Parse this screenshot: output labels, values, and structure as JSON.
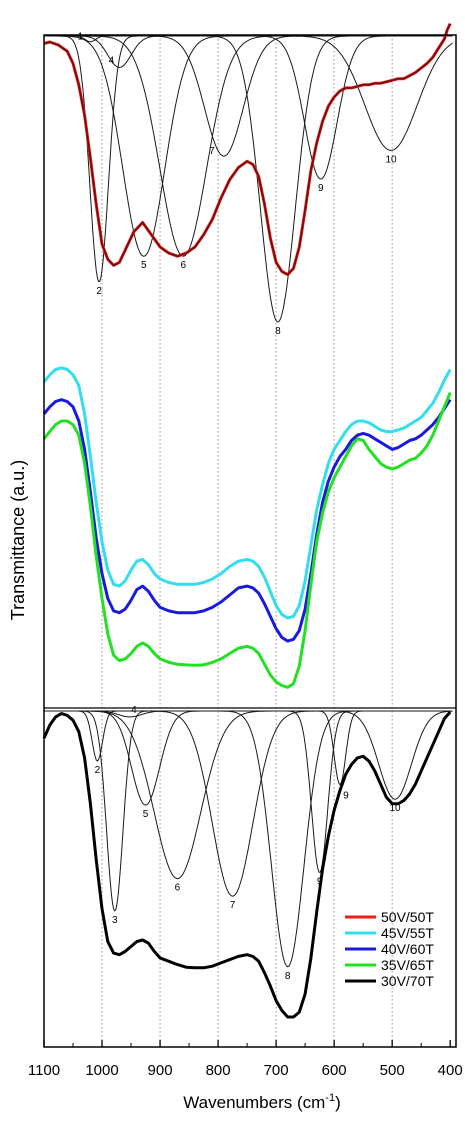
{
  "chart_data": {
    "type": "line",
    "xlabel": "Wavenumbers (cm",
    "xlabel_sup": "-1",
    "xlabel_close": ")",
    "ylabel": "Transmittance (a.u.)",
    "xlim": [
      1100,
      390
    ],
    "x_reversed": true,
    "xticks": [
      1100,
      1000,
      900,
      800,
      700,
      600,
      500,
      400
    ],
    "vgrid": [
      1000,
      900,
      800,
      700,
      600,
      500
    ],
    "legend_position": "bottom-right",
    "legend": [
      {
        "name": "50V/50T",
        "color": "#ee1c1c"
      },
      {
        "name": "45V/55T",
        "color": "#33ddee"
      },
      {
        "name": "40V/60T",
        "color": "#1a1adc"
      },
      {
        "name": "35V/65T",
        "color": "#22e022"
      },
      {
        "name": "30V/70T",
        "color": "#000000"
      }
    ],
    "series": [
      {
        "name": "50V/50T",
        "panel": "top",
        "color": "#ee1c1c",
        "overlay_color": "#6b0f0f",
        "x": [
          1100,
          1090,
          1075,
          1060,
          1050,
          1040,
          1030,
          1020,
          1010,
          1000,
          990,
          980,
          970,
          960,
          945,
          930,
          915,
          900,
          885,
          870,
          855,
          840,
          825,
          810,
          795,
          780,
          765,
          750,
          740,
          730,
          720,
          710,
          700,
          690,
          680,
          670,
          660,
          650,
          640,
          630,
          620,
          610,
          600,
          590,
          580,
          570,
          560,
          550,
          540,
          530,
          520,
          510,
          500,
          490,
          480,
          470,
          460,
          450,
          440,
          430,
          420,
          410,
          405,
          400
        ],
        "y": [
          0.995,
          1.0,
          0.99,
          0.97,
          0.93,
          0.86,
          0.76,
          0.62,
          0.47,
          0.34,
          0.29,
          0.27,
          0.28,
          0.32,
          0.38,
          0.41,
          0.37,
          0.33,
          0.31,
          0.3,
          0.31,
          0.33,
          0.37,
          0.42,
          0.49,
          0.55,
          0.59,
          0.61,
          0.6,
          0.56,
          0.47,
          0.36,
          0.28,
          0.25,
          0.24,
          0.26,
          0.33,
          0.45,
          0.58,
          0.67,
          0.74,
          0.79,
          0.82,
          0.84,
          0.85,
          0.85,
          0.855,
          0.86,
          0.86,
          0.865,
          0.865,
          0.87,
          0.875,
          0.88,
          0.88,
          0.89,
          0.9,
          0.915,
          0.93,
          0.95,
          0.98,
          1.01,
          1.04,
          1.06
        ]
      },
      {
        "name": "45V/55T",
        "panel": "middle",
        "color": "#33ddee",
        "x": [
          1100,
          1090,
          1080,
          1070,
          1060,
          1050,
          1040,
          1030,
          1020,
          1010,
          1000,
          990,
          980,
          970,
          960,
          950,
          940,
          930,
          920,
          910,
          900,
          885,
          870,
          855,
          840,
          825,
          810,
          795,
          780,
          765,
          750,
          740,
          730,
          720,
          710,
          700,
          690,
          680,
          670,
          660,
          650,
          640,
          630,
          620,
          610,
          600,
          590,
          580,
          570,
          560,
          550,
          540,
          530,
          520,
          510,
          500,
          490,
          480,
          470,
          460,
          450,
          440,
          430,
          420,
          410,
          400
        ],
        "y": [
          0.91,
          0.93,
          0.945,
          0.95,
          0.945,
          0.93,
          0.9,
          0.82,
          0.7,
          0.57,
          0.46,
          0.38,
          0.34,
          0.335,
          0.35,
          0.38,
          0.405,
          0.41,
          0.395,
          0.37,
          0.355,
          0.345,
          0.34,
          0.34,
          0.34,
          0.345,
          0.355,
          0.37,
          0.39,
          0.405,
          0.41,
          0.405,
          0.39,
          0.36,
          0.32,
          0.28,
          0.255,
          0.245,
          0.25,
          0.28,
          0.35,
          0.45,
          0.55,
          0.62,
          0.68,
          0.72,
          0.745,
          0.77,
          0.79,
          0.8,
          0.8,
          0.795,
          0.785,
          0.775,
          0.77,
          0.77,
          0.775,
          0.78,
          0.79,
          0.8,
          0.81,
          0.83,
          0.85,
          0.88,
          0.915,
          0.945
        ]
      },
      {
        "name": "40V/60T",
        "panel": "middle",
        "color": "#1a1adc",
        "x": [
          1100,
          1090,
          1080,
          1070,
          1060,
          1050,
          1040,
          1030,
          1020,
          1010,
          1000,
          990,
          980,
          970,
          960,
          950,
          940,
          930,
          920,
          910,
          900,
          885,
          870,
          855,
          840,
          825,
          810,
          795,
          780,
          765,
          750,
          740,
          730,
          720,
          710,
          700,
          690,
          680,
          670,
          660,
          650,
          640,
          630,
          620,
          610,
          600,
          590,
          580,
          570,
          560,
          550,
          540,
          530,
          520,
          510,
          500,
          490,
          480,
          470,
          460,
          450,
          440,
          430,
          420,
          410,
          400
        ],
        "y": [
          0.82,
          0.84,
          0.855,
          0.86,
          0.855,
          0.84,
          0.8,
          0.72,
          0.6,
          0.47,
          0.37,
          0.3,
          0.265,
          0.26,
          0.27,
          0.295,
          0.325,
          0.335,
          0.32,
          0.295,
          0.275,
          0.265,
          0.26,
          0.26,
          0.26,
          0.265,
          0.275,
          0.29,
          0.31,
          0.33,
          0.335,
          0.33,
          0.315,
          0.285,
          0.25,
          0.215,
          0.19,
          0.18,
          0.185,
          0.21,
          0.27,
          0.37,
          0.48,
          0.57,
          0.63,
          0.67,
          0.7,
          0.72,
          0.745,
          0.76,
          0.765,
          0.76,
          0.75,
          0.74,
          0.73,
          0.72,
          0.725,
          0.735,
          0.745,
          0.75,
          0.76,
          0.775,
          0.79,
          0.81,
          0.835,
          0.86
        ]
      },
      {
        "name": "35V/65T",
        "panel": "middle",
        "color": "#22e022",
        "x": [
          1100,
          1090,
          1080,
          1070,
          1060,
          1050,
          1040,
          1030,
          1020,
          1010,
          1000,
          990,
          980,
          970,
          960,
          950,
          940,
          930,
          920,
          910,
          900,
          885,
          870,
          855,
          840,
          825,
          810,
          795,
          780,
          765,
          750,
          740,
          730,
          720,
          710,
          700,
          690,
          680,
          670,
          660,
          650,
          640,
          630,
          620,
          610,
          600,
          590,
          580,
          570,
          560,
          550,
          540,
          530,
          520,
          510,
          500,
          490,
          480,
          470,
          460,
          450,
          440,
          430,
          420,
          410,
          400
        ],
        "y": [
          0.75,
          0.77,
          0.79,
          0.8,
          0.8,
          0.79,
          0.76,
          0.68,
          0.56,
          0.42,
          0.3,
          0.2,
          0.14,
          0.125,
          0.13,
          0.145,
          0.165,
          0.175,
          0.165,
          0.145,
          0.13,
          0.12,
          0.115,
          0.113,
          0.112,
          0.113,
          0.12,
          0.13,
          0.145,
          0.16,
          0.165,
          0.16,
          0.145,
          0.115,
          0.085,
          0.065,
          0.055,
          0.05,
          0.06,
          0.11,
          0.21,
          0.34,
          0.46,
          0.54,
          0.6,
          0.64,
          0.67,
          0.7,
          0.73,
          0.75,
          0.745,
          0.72,
          0.7,
          0.68,
          0.67,
          0.665,
          0.67,
          0.68,
          0.69,
          0.695,
          0.71,
          0.73,
          0.76,
          0.8,
          0.84,
          0.88
        ]
      },
      {
        "name": "30V/70T",
        "panel": "bottom",
        "color": "#000000",
        "x": [
          1100,
          1090,
          1080,
          1070,
          1060,
          1050,
          1040,
          1030,
          1020,
          1010,
          1000,
          990,
          980,
          970,
          960,
          950,
          940,
          930,
          920,
          910,
          900,
          885,
          870,
          855,
          840,
          825,
          810,
          795,
          780,
          765,
          750,
          740,
          730,
          720,
          710,
          700,
          690,
          680,
          670,
          660,
          650,
          640,
          630,
          620,
          610,
          600,
          590,
          580,
          570,
          560,
          550,
          540,
          530,
          520,
          510,
          500,
          490,
          480,
          470,
          460,
          450,
          440,
          430,
          420,
          410,
          400
        ],
        "y": [
          0.92,
          0.96,
          0.985,
          0.995,
          0.99,
          0.975,
          0.94,
          0.86,
          0.72,
          0.55,
          0.4,
          0.3,
          0.265,
          0.26,
          0.27,
          0.285,
          0.3,
          0.305,
          0.295,
          0.27,
          0.25,
          0.24,
          0.23,
          0.222,
          0.22,
          0.22,
          0.225,
          0.235,
          0.245,
          0.255,
          0.26,
          0.255,
          0.24,
          0.205,
          0.165,
          0.12,
          0.09,
          0.07,
          0.07,
          0.085,
          0.14,
          0.25,
          0.39,
          0.52,
          0.62,
          0.7,
          0.76,
          0.81,
          0.84,
          0.86,
          0.865,
          0.85,
          0.82,
          0.78,
          0.74,
          0.72,
          0.72,
          0.73,
          0.75,
          0.78,
          0.82,
          0.86,
          0.9,
          0.94,
          0.98,
          1.0
        ]
      }
    ],
    "fit_components": [
      {
        "panel": "top",
        "label": "1",
        "center": 1020,
        "width": 9,
        "depth": 0.02,
        "label_dx": -10,
        "label_dy": -2
      },
      {
        "panel": "top",
        "label": "2",
        "center": 1005,
        "width": 16,
        "depth": 0.86,
        "label_dx": 0,
        "label_dy": 12
      },
      {
        "panel": "top",
        "label": "4",
        "center": 970,
        "width": 20,
        "depth": 0.11,
        "label_dx": -8,
        "label_dy": -4
      },
      {
        "panel": "top",
        "label": "5",
        "center": 928,
        "width": 36,
        "depth": 0.77,
        "label_dx": 0,
        "label_dy": 12
      },
      {
        "panel": "top",
        "label": "6",
        "center": 860,
        "width": 40,
        "depth": 0.77,
        "label_dx": 0,
        "label_dy": 12
      },
      {
        "panel": "top",
        "label": "7",
        "center": 790,
        "width": 33,
        "depth": 0.42,
        "label_dx": -12,
        "label_dy": -2
      },
      {
        "panel": "top",
        "label": "8",
        "center": 697,
        "width": 30,
        "depth": 1.0,
        "label_dx": 0,
        "label_dy": 12
      },
      {
        "panel": "top",
        "label": "9",
        "center": 623,
        "width": 28,
        "depth": 0.5,
        "label_dx": 0,
        "label_dy": 12
      },
      {
        "panel": "top",
        "label": "10",
        "center": 502,
        "width": 45,
        "depth": 0.4,
        "label_dx": 0,
        "label_dy": 12
      },
      {
        "panel": "bottom",
        "label": "2",
        "center": 1008,
        "width": 9,
        "depth": 0.17,
        "label_dx": 0,
        "label_dy": 12
      },
      {
        "panel": "bottom",
        "label": "3",
        "center": 978,
        "width": 14,
        "depth": 0.68,
        "label_dx": 0,
        "label_dy": 12
      },
      {
        "panel": "bottom",
        "label": "4",
        "center": 952,
        "width": 20,
        "depth": 0.02,
        "label_dx": 4,
        "label_dy": -4
      },
      {
        "panel": "bottom",
        "label": "5",
        "center": 925,
        "width": 24,
        "depth": 0.32,
        "label_dx": 0,
        "label_dy": 12
      },
      {
        "panel": "bottom",
        "label": "6",
        "center": 870,
        "width": 40,
        "depth": 0.57,
        "label_dx": 0,
        "label_dy": 12
      },
      {
        "panel": "bottom",
        "label": "7",
        "center": 775,
        "width": 35,
        "depth": 0.63,
        "label_dx": 0,
        "label_dy": 12
      },
      {
        "panel": "bottom",
        "label": "8",
        "center": 680,
        "width": 28,
        "depth": 0.87,
        "label_dx": 0,
        "label_dy": 12
      },
      {
        "panel": "bottom",
        "label": "9",
        "center": 625,
        "width": 14,
        "depth": 0.55,
        "label_dx": 0,
        "label_dy": 12
      },
      {
        "panel": "bottom",
        "label": "9",
        "center": 590,
        "width": 10,
        "depth": 0.25,
        "label_dx": 6,
        "label_dy": 14
      },
      {
        "panel": "bottom",
        "label": "10",
        "center": 495,
        "width": 28,
        "depth": 0.3,
        "label_dx": 0,
        "label_dy": 12
      }
    ]
  }
}
